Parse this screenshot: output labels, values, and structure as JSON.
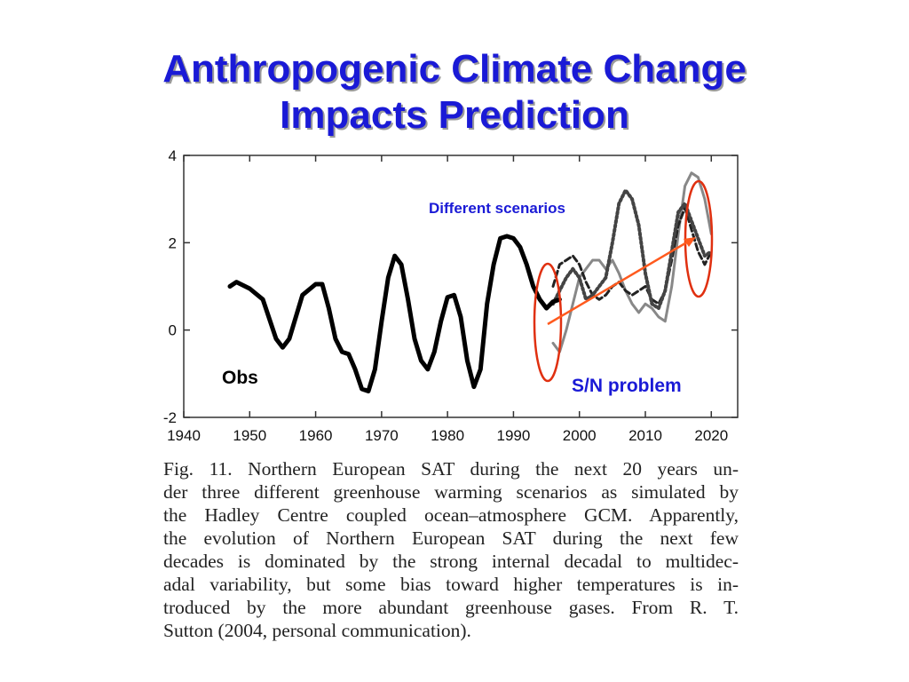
{
  "slide": {
    "title_lines": [
      "Anthropogenic Climate Change",
      "Impacts Prediction"
    ]
  },
  "chart_data": {
    "type": "line",
    "xlim": [
      1940,
      2024
    ],
    "ylim": [
      -2,
      4
    ],
    "x_ticks": [
      1940,
      1950,
      1960,
      1970,
      1980,
      1990,
      2000,
      2010,
      2020
    ],
    "y_ticks": [
      -2,
      0,
      2,
      4
    ],
    "annotations": {
      "scenarios": "Different scenarios",
      "obs": "Obs",
      "sn": "S/N problem"
    },
    "series": [
      {
        "color": "#000000",
        "style": "solid-thick",
        "x": [
          1947,
          1948,
          1950,
          1952,
          1954,
          1955,
          1956,
          1958,
          1960,
          1961,
          1962,
          1963,
          1964,
          1965,
          1966,
          1967,
          1968,
          1969,
          1970,
          1971,
          1972,
          1973,
          1974,
          1975,
          1976,
          1977,
          1978,
          1979,
          1980,
          1981,
          1982,
          1983,
          1984,
          1985,
          1986,
          1987,
          1988,
          1989,
          1990,
          1991,
          1992,
          1993,
          1994,
          1995,
          1996,
          1997
        ],
        "y": [
          1.0,
          1.1,
          0.95,
          0.7,
          -0.2,
          -0.4,
          -0.2,
          0.8,
          1.05,
          1.05,
          0.5,
          -0.2,
          -0.5,
          -0.55,
          -0.9,
          -1.35,
          -1.4,
          -0.9,
          0.2,
          1.2,
          1.7,
          1.5,
          0.7,
          -0.2,
          -0.7,
          -0.9,
          -0.5,
          0.2,
          0.75,
          0.8,
          0.3,
          -0.7,
          -1.3,
          -0.9,
          0.6,
          1.5,
          2.1,
          2.15,
          2.1,
          1.9,
          1.5,
          1.0,
          0.7,
          0.5,
          0.65,
          0.7
        ]
      },
      {
        "color": "#444444",
        "style": "dotted-thick",
        "x": [
          1996,
          1997,
          1998,
          1999,
          2000,
          2001,
          2002,
          2003,
          2004,
          2005,
          2006,
          2007,
          2008,
          2009,
          2010,
          2011,
          2012,
          2013,
          2014,
          2015,
          2016,
          2017,
          2018,
          2019,
          2020
        ],
        "y": [
          0.6,
          0.9,
          1.2,
          1.4,
          1.2,
          0.7,
          0.8,
          1.0,
          1.2,
          2.0,
          2.9,
          3.2,
          3.0,
          2.4,
          1.3,
          0.6,
          0.5,
          0.9,
          1.8,
          2.7,
          2.9,
          2.5,
          2.1,
          1.7,
          1.8
        ]
      },
      {
        "color": "#222222",
        "style": "dashed",
        "x": [
          1996,
          1997,
          1998,
          1999,
          2000,
          2001,
          2002,
          2003,
          2004,
          2005,
          2006,
          2007,
          2008,
          2009,
          2010,
          2011,
          2012,
          2013,
          2014,
          2015,
          2016,
          2017,
          2018,
          2019,
          2020
        ],
        "y": [
          1.0,
          1.5,
          1.6,
          1.7,
          1.5,
          1.1,
          0.8,
          0.7,
          0.8,
          1.0,
          1.1,
          0.9,
          0.8,
          0.9,
          1.0,
          0.7,
          0.6,
          0.9,
          1.6,
          2.4,
          2.8,
          2.3,
          1.8,
          1.5,
          1.8
        ]
      },
      {
        "color": "#888888",
        "style": "solid",
        "x": [
          1996,
          1997,
          1998,
          1999,
          2000,
          2001,
          2002,
          2003,
          2004,
          2005,
          2006,
          2007,
          2008,
          2009,
          2010,
          2011,
          2012,
          2013,
          2014,
          2015,
          2016,
          2017,
          2018,
          2019,
          2020
        ],
        "y": [
          -0.3,
          -0.5,
          0.0,
          0.6,
          1.2,
          1.4,
          1.6,
          1.6,
          1.4,
          1.6,
          1.3,
          0.9,
          0.6,
          0.4,
          0.6,
          0.5,
          0.3,
          0.2,
          1.0,
          2.2,
          3.3,
          3.6,
          3.5,
          3.0,
          2.2
        ]
      }
    ]
  },
  "caption": {
    "lines": [
      "Fig. 11. Northern European SAT during the next 20 years un-",
      "der three different greenhouse warming scenarios as simulated by",
      "the Hadley Centre coupled ocean–atmosphere GCM. Apparently,",
      "the evolution of Northern European SAT during the next few",
      "decades is dominated by the strong internal decadal to multidec-",
      "adal variability, but some bias toward higher temperatures is in-",
      "troduced by the more abundant greenhouse gases. From R. T.",
      "Sutton (2004, personal communication)."
    ]
  },
  "colors": {
    "title": "#1a1ad6",
    "annotation_blue": "#1a1ad6",
    "highlight_red": "#e03010",
    "arrow": "#ff5a1e"
  }
}
